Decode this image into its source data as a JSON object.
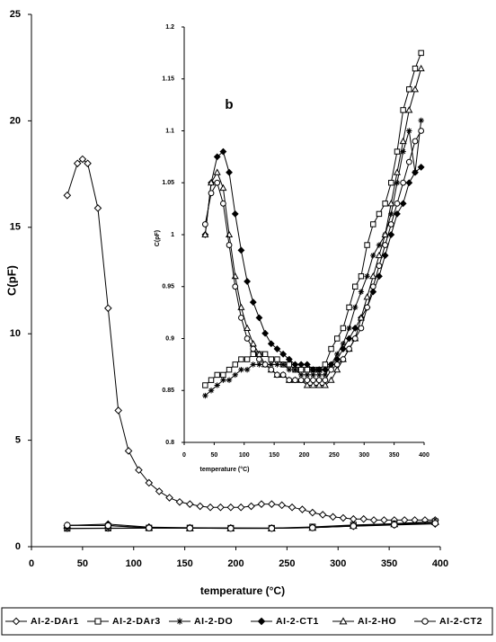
{
  "chart_data": [
    {
      "type": "line",
      "ylabel": "C(pF)",
      "xlabel": "temperature (°C)",
      "xlim": [
        0,
        400
      ],
      "xticks": [
        0,
        50,
        100,
        150,
        200,
        250,
        300,
        350,
        400
      ],
      "ylim": [
        0,
        25
      ],
      "yticks": [
        0,
        5,
        10,
        15,
        20,
        25
      ],
      "grid": false,
      "legend": "bottom",
      "series": [
        {
          "name": "AI-2-DAr1",
          "marker": "diamond-open",
          "color": "#000000",
          "x": [
            35,
            45,
            50,
            55,
            65,
            75,
            85,
            95,
            105,
            115,
            125,
            135,
            145,
            155,
            165,
            175,
            185,
            195,
            205,
            215,
            225,
            235,
            245,
            255,
            265,
            275,
            285,
            295,
            305,
            315,
            325,
            335,
            345,
            355,
            365,
            375,
            385,
            395
          ],
          "values": [
            16.5,
            18.0,
            18.2,
            18.0,
            15.9,
            11.2,
            6.4,
            4.5,
            3.6,
            3.0,
            2.6,
            2.3,
            2.1,
            2.0,
            1.9,
            1.85,
            1.85,
            1.85,
            1.85,
            1.9,
            2.0,
            2.0,
            1.95,
            1.85,
            1.75,
            1.6,
            1.5,
            1.4,
            1.35,
            1.3,
            1.3,
            1.25,
            1.25,
            1.25,
            1.25,
            1.25,
            1.25,
            1.25
          ]
        },
        {
          "name": "AI-2-DAr3",
          "marker": "square-open",
          "color": "#000000",
          "x": [
            35,
            75,
            115,
            155,
            195,
            235,
            275,
            315,
            355,
            395
          ],
          "values": [
            0.86,
            0.87,
            0.88,
            0.88,
            0.87,
            0.87,
            0.93,
            1.02,
            1.08,
            1.18
          ]
        },
        {
          "name": "AI-2-DO",
          "marker": "star",
          "color": "#000000",
          "x": [
            35,
            75,
            115,
            155,
            195,
            235,
            275,
            315,
            355,
            395
          ],
          "values": [
            0.85,
            0.86,
            0.87,
            0.87,
            0.87,
            0.87,
            0.91,
            0.99,
            1.05,
            1.1
          ]
        },
        {
          "name": "AI-2-CT1",
          "marker": "diamond-filled",
          "color": "#000000",
          "x": [
            35,
            75,
            115,
            155,
            195,
            235,
            275,
            315,
            355,
            395
          ],
          "values": [
            1.0,
            1.06,
            0.92,
            0.89,
            0.88,
            0.87,
            0.9,
            0.96,
            1.02,
            1.07
          ]
        },
        {
          "name": "AI-2-HO",
          "marker": "triangle-open",
          "color": "#000000",
          "x": [
            35,
            75,
            115,
            155,
            195,
            235,
            275,
            315,
            355,
            395
          ],
          "values": [
            1.0,
            1.0,
            0.89,
            0.87,
            0.86,
            0.86,
            0.89,
            0.98,
            1.06,
            1.16
          ]
        },
        {
          "name": "AI-2-CT2",
          "marker": "circle-open",
          "color": "#000000",
          "x": [
            35,
            75,
            115,
            155,
            195,
            235,
            275,
            315,
            355,
            395
          ],
          "values": [
            1.01,
            0.99,
            0.88,
            0.87,
            0.86,
            0.86,
            0.89,
            0.97,
            1.03,
            1.1
          ]
        }
      ]
    },
    {
      "type": "line",
      "annotation": "b",
      "ylabel": "C(pF)",
      "xlabel": "temperature (°C)",
      "xlim": [
        0,
        400
      ],
      "xticks": [
        0,
        50,
        100,
        150,
        200,
        250,
        300,
        350,
        400
      ],
      "ylim": [
        0.8,
        1.2
      ],
      "yticks": [
        0.8,
        0.85,
        0.9,
        0.95,
        1,
        1.05,
        1.1,
        1.15,
        1.2
      ],
      "grid": false,
      "x": [
        35,
        45,
        55,
        65,
        75,
        85,
        95,
        105,
        115,
        125,
        135,
        145,
        155,
        165,
        175,
        185,
        195,
        205,
        215,
        225,
        235,
        245,
        255,
        265,
        275,
        285,
        295,
        305,
        315,
        325,
        335,
        345,
        355,
        365,
        375,
        385,
        395
      ],
      "series": [
        {
          "marker": "square-open",
          "color": "#000000",
          "values": [
            0.855,
            0.86,
            0.865,
            0.865,
            0.87,
            0.875,
            0.88,
            0.88,
            0.885,
            0.885,
            0.885,
            0.88,
            0.88,
            0.875,
            0.875,
            0.87,
            0.87,
            0.87,
            0.87,
            0.87,
            0.875,
            0.89,
            0.9,
            0.91,
            0.93,
            0.95,
            0.96,
            0.99,
            1.01,
            1.02,
            1.03,
            1.05,
            1.08,
            1.12,
            1.14,
            1.16,
            1.175
          ]
        },
        {
          "marker": "star",
          "color": "#000000",
          "values": [
            0.845,
            0.85,
            0.855,
            0.86,
            0.86,
            0.865,
            0.87,
            0.87,
            0.875,
            0.875,
            0.875,
            0.875,
            0.875,
            0.875,
            0.87,
            0.87,
            0.865,
            0.865,
            0.865,
            0.865,
            0.865,
            0.875,
            0.885,
            0.895,
            0.91,
            0.93,
            0.945,
            0.96,
            0.98,
            0.99,
            1.0,
            1.02,
            1.05,
            1.08,
            1.1,
            1.06,
            1.11
          ]
        },
        {
          "marker": "diamond-filled",
          "color": "#000000",
          "values": [
            1.0,
            1.05,
            1.075,
            1.08,
            1.06,
            1.02,
            0.985,
            0.955,
            0.935,
            0.92,
            0.905,
            0.895,
            0.89,
            0.885,
            0.88,
            0.875,
            0.875,
            0.875,
            0.87,
            0.87,
            0.87,
            0.875,
            0.88,
            0.89,
            0.9,
            0.91,
            0.92,
            0.93,
            0.945,
            0.96,
            0.98,
            1.0,
            1.02,
            1.03,
            1.05,
            1.06,
            1.065
          ]
        },
        {
          "marker": "triangle-open",
          "color": "#000000",
          "values": [
            1.0,
            1.05,
            1.06,
            1.045,
            1.0,
            0.96,
            0.93,
            0.91,
            0.895,
            0.885,
            0.875,
            0.87,
            0.865,
            0.865,
            0.86,
            0.86,
            0.86,
            0.855,
            0.855,
            0.855,
            0.855,
            0.86,
            0.87,
            0.88,
            0.89,
            0.9,
            0.92,
            0.94,
            0.96,
            0.98,
            1.0,
            1.03,
            1.06,
            1.09,
            1.12,
            1.14,
            1.16
          ]
        },
        {
          "marker": "circle-open",
          "color": "#000000",
          "values": [
            1.01,
            1.04,
            1.05,
            1.03,
            0.99,
            0.95,
            0.92,
            0.9,
            0.89,
            0.88,
            0.875,
            0.87,
            0.865,
            0.865,
            0.86,
            0.86,
            0.86,
            0.86,
            0.86,
            0.86,
            0.86,
            0.87,
            0.875,
            0.88,
            0.89,
            0.9,
            0.91,
            0.93,
            0.95,
            0.97,
            0.99,
            1.01,
            1.03,
            1.05,
            1.07,
            1.09,
            1.1
          ]
        }
      ]
    }
  ]
}
